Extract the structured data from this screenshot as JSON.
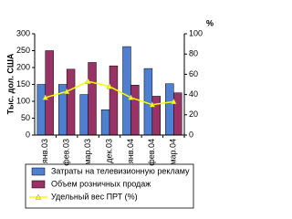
{
  "chart_data": {
    "type": "bar-line",
    "ylabel": "Тыс. дол. США",
    "y2label": "%",
    "categories": [
      "янв.03",
      "фев.03",
      "мар.03",
      "дек.03",
      "янв.04",
      "фев.04",
      "мар.04"
    ],
    "series": [
      {
        "name": "Затраты на телевизионную рекламу",
        "type": "bar",
        "color": "#4f7fd0",
        "values": [
          150,
          150,
          120,
          75,
          262,
          197,
          152
        ]
      },
      {
        "name": "Объем розничных продаж",
        "type": "bar",
        "color": "#993366",
        "values": [
          250,
          195,
          215,
          205,
          148,
          115,
          125
        ]
      },
      {
        "name": "Удельный вес ПРТ (%)",
        "type": "line",
        "axis": "y2",
        "color": "#ffff00",
        "values": [
          37,
          43,
          53,
          48,
          37,
          30,
          33
        ]
      }
    ],
    "ylim": [
      0,
      300
    ],
    "yticks": [
      0,
      50,
      100,
      150,
      200,
      250,
      300
    ],
    "y2lim": [
      0,
      100
    ],
    "y2ticks": [
      0,
      20,
      40,
      60,
      80,
      100
    ]
  }
}
